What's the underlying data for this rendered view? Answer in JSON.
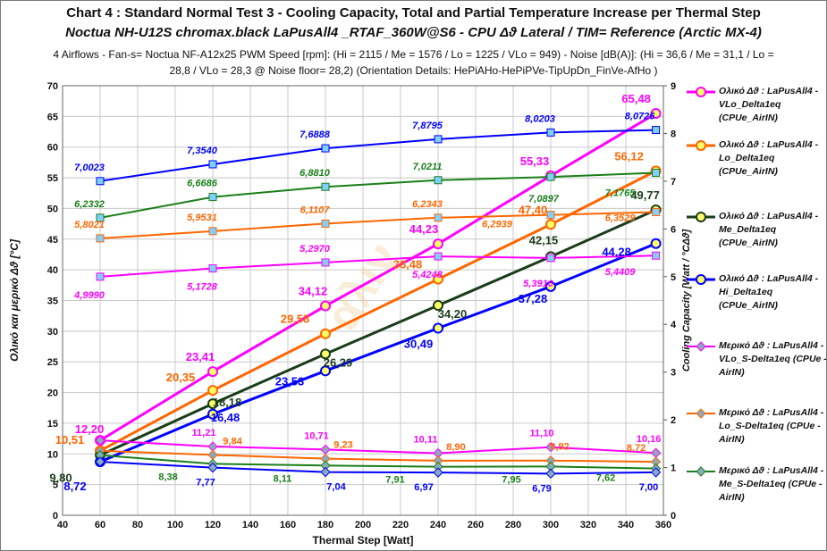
{
  "title": "Chart 4 :  Standard  Normal Test  3  -  Cooling Capacity,  Total and Partial Temperature Increase per Thermal Step",
  "subtitle": "Noctua NH-U12S chromax.black  LaPusAll4 _RTAF_360W@S6 - CPU  Δϑ Lateral / TIM= Reference (Arctic MX-4)",
  "info_line1": "4 Airflows - Fan-s= Noctua NF-A12x25  PWM  Speed [rpm]: (Hi = 2115 / Me = 1576 / Lo = 1225 / VLo = 949) - Noise [dB(A)]: (Hi = 36,6 / Me = 31,1 / Lo =",
  "info_line2": "28,8 / VLo = 28,3  @ Noise floor= 28,2)  (Orientation Details: HePiAHo-HePiPVe-TipUpDn_FinVe-AfHo )",
  "chart_data": {
    "type": "line",
    "xlabel": "Thermal Step [Watt]",
    "ylabel_left": "Ολικό και μερικό  Δϑ [°C]",
    "ylabel_right": "Cooling Capacity  [Watt / °CΔϑ]",
    "xlim": [
      40,
      360
    ],
    "xticks": [
      "40",
      "60",
      "80",
      "100",
      "120",
      "140",
      "160",
      "180",
      "200",
      "220",
      "240",
      "260",
      "280",
      "300",
      "320",
      "340",
      "360"
    ],
    "ylim_left": [
      0,
      70
    ],
    "yticks_left": [
      "0",
      "5",
      "10",
      "15",
      "20",
      "25",
      "30",
      "35",
      "40",
      "45",
      "50",
      "55",
      "60",
      "65",
      "70"
    ],
    "ylim_right": [
      0,
      9
    ],
    "yticks_right": [
      "0",
      "1",
      "2",
      "3",
      "4",
      "5",
      "6",
      "7",
      "8",
      "9"
    ],
    "grid": true,
    "legend_position": "right",
    "x": [
      60,
      120,
      180,
      240,
      300,
      356
    ],
    "colors": {
      "vlo": "#ff00ff",
      "lo": "#ff6600",
      "me": "#1a7f1a",
      "hi": "#0000ff",
      "black": "#000000"
    },
    "series": [
      {
        "name": "Ολικό Δϑ : LaPusAll4 -VLo_Delta1eq (CPUe_AirIN)",
        "kind": "total",
        "axis": "left",
        "color": "#ff00ff",
        "legend_color": "#ff00ff",
        "values": [
          12.2,
          23.41,
          34.12,
          44.23,
          55.33,
          65.48
        ],
        "labels": [
          "12,20",
          "23,41",
          "34,12",
          "44,23",
          "55,33",
          "65,48"
        ]
      },
      {
        "name": "Ολικό Δϑ : LaPusAll4 -Lo_Delta1eq (CPUe_AirIN)",
        "kind": "total",
        "axis": "left",
        "color": "#ff6600",
        "legend_color": "#ff6600",
        "values": [
          10.51,
          20.35,
          29.58,
          38.48,
          47.4,
          56.12
        ],
        "labels": [
          "10,51",
          "20,35",
          "29,58",
          "38,48",
          "47,40",
          "56,12"
        ]
      },
      {
        "name": "Ολικό Δϑ : LaPusAll4 -Me_Delta1eq (CPUe_AirIN)",
        "kind": "total",
        "axis": "left",
        "color": "#1a3d1a",
        "legend_color": "#1a3d1a",
        "values": [
          9.8,
          18.18,
          26.29,
          34.2,
          42.15,
          49.77
        ],
        "labels": [
          "9,80",
          "18,18",
          "26,29",
          "34,20",
          "42,15",
          "49,77"
        ]
      },
      {
        "name": "Ολικό Δϑ : LaPusAll4 -Hi_Delta1eq (CPUe_AirIN)",
        "kind": "total",
        "axis": "left",
        "color": "#0000ff",
        "legend_color": "#0000ff",
        "values": [
          8.72,
          16.48,
          23.53,
          30.49,
          37.28,
          44.28
        ],
        "labels": [
          "8,72",
          "16,48",
          "23,53",
          "30,49",
          "37,28",
          "44,28"
        ]
      },
      {
        "name": "Μερικό Δϑ : LaPusAll4 -VLo_S-Delta1eq (CPUe - AirIN)",
        "kind": "partial",
        "axis": "left",
        "color": "#ff00ff",
        "legend_color": "#ff00ff",
        "values": [
          12.2,
          11.21,
          10.71,
          10.11,
          11.1,
          10.16
        ],
        "labels": [
          "",
          "11,21",
          "10,71",
          "10,11",
          "11,10",
          "10,16"
        ]
      },
      {
        "name": "Μερικό Δϑ : LaPusAll4 -Lo_S-Delta1eq (CPUe - AirIN)",
        "kind": "partial",
        "axis": "left",
        "color": "#ff6600",
        "legend_color": "#ff6600",
        "values": [
          10.51,
          9.84,
          9.23,
          8.9,
          8.92,
          8.72
        ],
        "labels": [
          "",
          "9,84",
          "9,23",
          "8,90",
          "8,92",
          "8,72"
        ]
      },
      {
        "name": "Μερικό Δϑ : LaPusAll4 -Me_S-Delta1eq (CPUe - AirIN)",
        "kind": "partial",
        "axis": "left",
        "color": "#1a7f1a",
        "legend_color": "#1a7f1a",
        "values": [
          9.8,
          8.38,
          8.11,
          7.91,
          7.95,
          7.62
        ],
        "labels": [
          "",
          "8,38",
          "8,11",
          "7,91",
          "7,95",
          "7,62"
        ]
      },
      {
        "name": "",
        "kind": "partial",
        "axis": "left",
        "color": "#0000ff",
        "values": [
          8.72,
          7.77,
          7.04,
          6.97,
          6.79,
          7.0
        ],
        "labels": [
          "",
          "7,77",
          "7,04",
          "6,97",
          "6,79",
          "7,00"
        ]
      },
      {
        "name": "",
        "kind": "capacity",
        "axis": "right",
        "color": "#0000ff",
        "values": [
          7.0023,
          7.354,
          7.6888,
          7.8795,
          8.0203,
          8.0726
        ],
        "labels": [
          "7,0023",
          "7,3540",
          "7,6888",
          "7,8795",
          "8,0203",
          "8,0726"
        ]
      },
      {
        "name": "",
        "kind": "capacity",
        "axis": "right",
        "color": "#1a7f1a",
        "values": [
          6.2332,
          6.6686,
          6.881,
          7.0211,
          7.0897,
          7.1765
        ],
        "labels": [
          "6,2332",
          "6,6686",
          "6,8810",
          "7,0211",
          "7,0897",
          "7,1765"
        ]
      },
      {
        "name": "",
        "kind": "capacity",
        "axis": "right",
        "color": "#ff6600",
        "values": [
          5.8021,
          5.9531,
          6.1107,
          6.2343,
          6.2939,
          6.3529
        ],
        "labels": [
          "5,8021",
          "5,9531",
          "6,1107",
          "6,2343",
          "6,2939",
          "6,3529"
        ]
      },
      {
        "name": "",
        "kind": "capacity",
        "axis": "right",
        "color": "#ff00ff",
        "values": [
          4.999,
          5.1728,
          5.297,
          5.4248,
          5.391,
          5.4409
        ],
        "labels": [
          "4,9990",
          "5,1728",
          "5,2970",
          "5,4248",
          "5,3910",
          "5,4409"
        ]
      }
    ]
  }
}
